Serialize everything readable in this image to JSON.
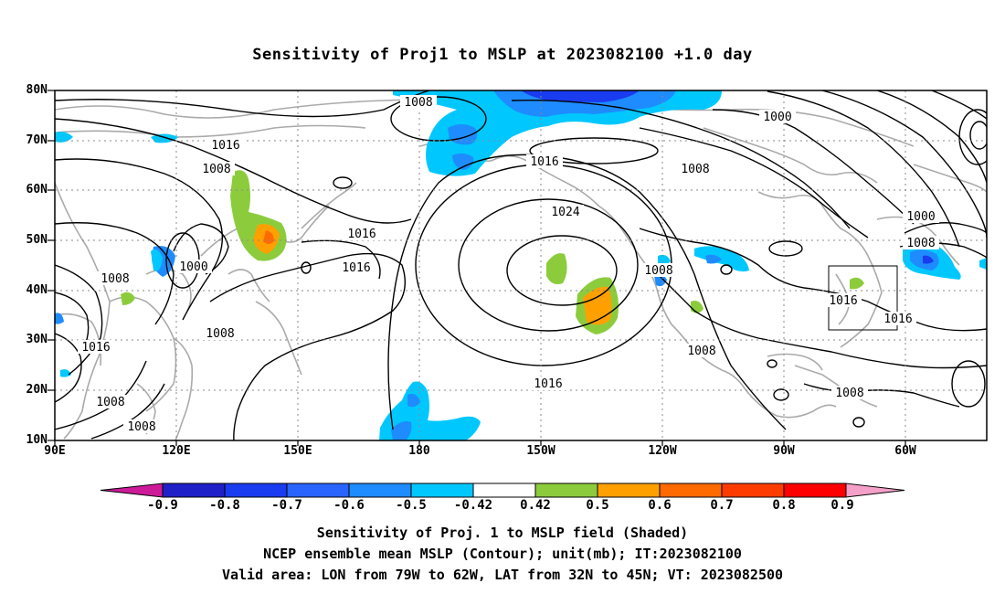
{
  "title": "Sensitivity of Proj1 to MSLP at 2023082100 +1.0 day",
  "lat_labels": [
    "80N",
    "70N",
    "60N",
    "50N",
    "40N",
    "30N",
    "20N",
    "10N"
  ],
  "lon_labels": [
    "90E",
    "120E",
    "150E",
    "180",
    "150W",
    "120W",
    "90W",
    "60W"
  ],
  "contour_labels": [
    "1008",
    "1016",
    "1008",
    "1000",
    "1016",
    "1016",
    "1024",
    "1008",
    "1008",
    "1016",
    "1000",
    "1008",
    "1016",
    "1016",
    "1008",
    "1016",
    "1008",
    "1008",
    "1008",
    "1016",
    "1008",
    "1008",
    "1000"
  ],
  "colorbar": {
    "labels": [
      "-0.9",
      "-0.8",
      "-0.7",
      "-0.6",
      "-0.5",
      "-0.42",
      "0.42",
      "0.5",
      "0.6",
      "0.7",
      "0.8",
      "0.9"
    ],
    "colors": [
      "#2020c8",
      "#1a3cf0",
      "#2a64ff",
      "#1e8cff",
      "#00c8ff",
      "#ffffff",
      "#8ccc3c",
      "#ffa000",
      "#ff6a00",
      "#ff3c00",
      "#ff0000"
    ],
    "end_low_color": "#cc1a99",
    "end_high_color": "#f4a0c8"
  },
  "captions": [
    "Sensitivity of Proj. 1 to MSLP field (Shaded)",
    "NCEP ensemble mean MSLP (Contour); unit(mb); IT:2023082100",
    "Valid area: LON from 79W to 62W, LAT from 32N to 45N; VT: 2023082500"
  ]
}
